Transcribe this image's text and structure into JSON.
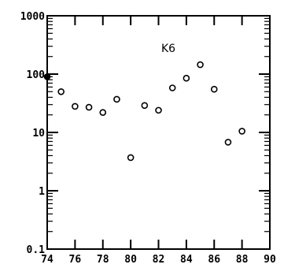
{
  "chart_data": {
    "type": "scatter",
    "title": "K6",
    "xlabel": "",
    "ylabel": "",
    "xlim": [
      74,
      90
    ],
    "ylim": [
      0.1,
      1000
    ],
    "yscale": "log",
    "grid": false,
    "x_ticks": [
      74,
      76,
      78,
      80,
      82,
      84,
      86,
      88,
      90
    ],
    "x_tick_labels": [
      "74",
      "76",
      "78",
      "80",
      "82",
      "84",
      "86",
      "88",
      "90"
    ],
    "y_ticks": [
      0.1,
      1,
      10,
      100,
      1000
    ],
    "y_tick_labels": [
      "0.1",
      "1",
      "10",
      "100",
      "1000"
    ],
    "series": [
      {
        "marker": "open-circle",
        "points": [
          {
            "x": 74,
            "y": 90,
            "filled": true
          },
          {
            "x": 75,
            "y": 50
          },
          {
            "x": 76,
            "y": 28
          },
          {
            "x": 77,
            "y": 27
          },
          {
            "x": 78,
            "y": 22
          },
          {
            "x": 79,
            "y": 37
          },
          {
            "x": 80,
            "y": 3.7
          },
          {
            "x": 81,
            "y": 29
          },
          {
            "x": 82,
            "y": 24
          },
          {
            "x": 83,
            "y": 58
          },
          {
            "x": 84,
            "y": 85
          },
          {
            "x": 85,
            "y": 145
          },
          {
            "x": 86,
            "y": 55
          },
          {
            "x": 87,
            "y": 6.8
          },
          {
            "x": 88,
            "y": 10.5
          }
        ]
      }
    ]
  }
}
